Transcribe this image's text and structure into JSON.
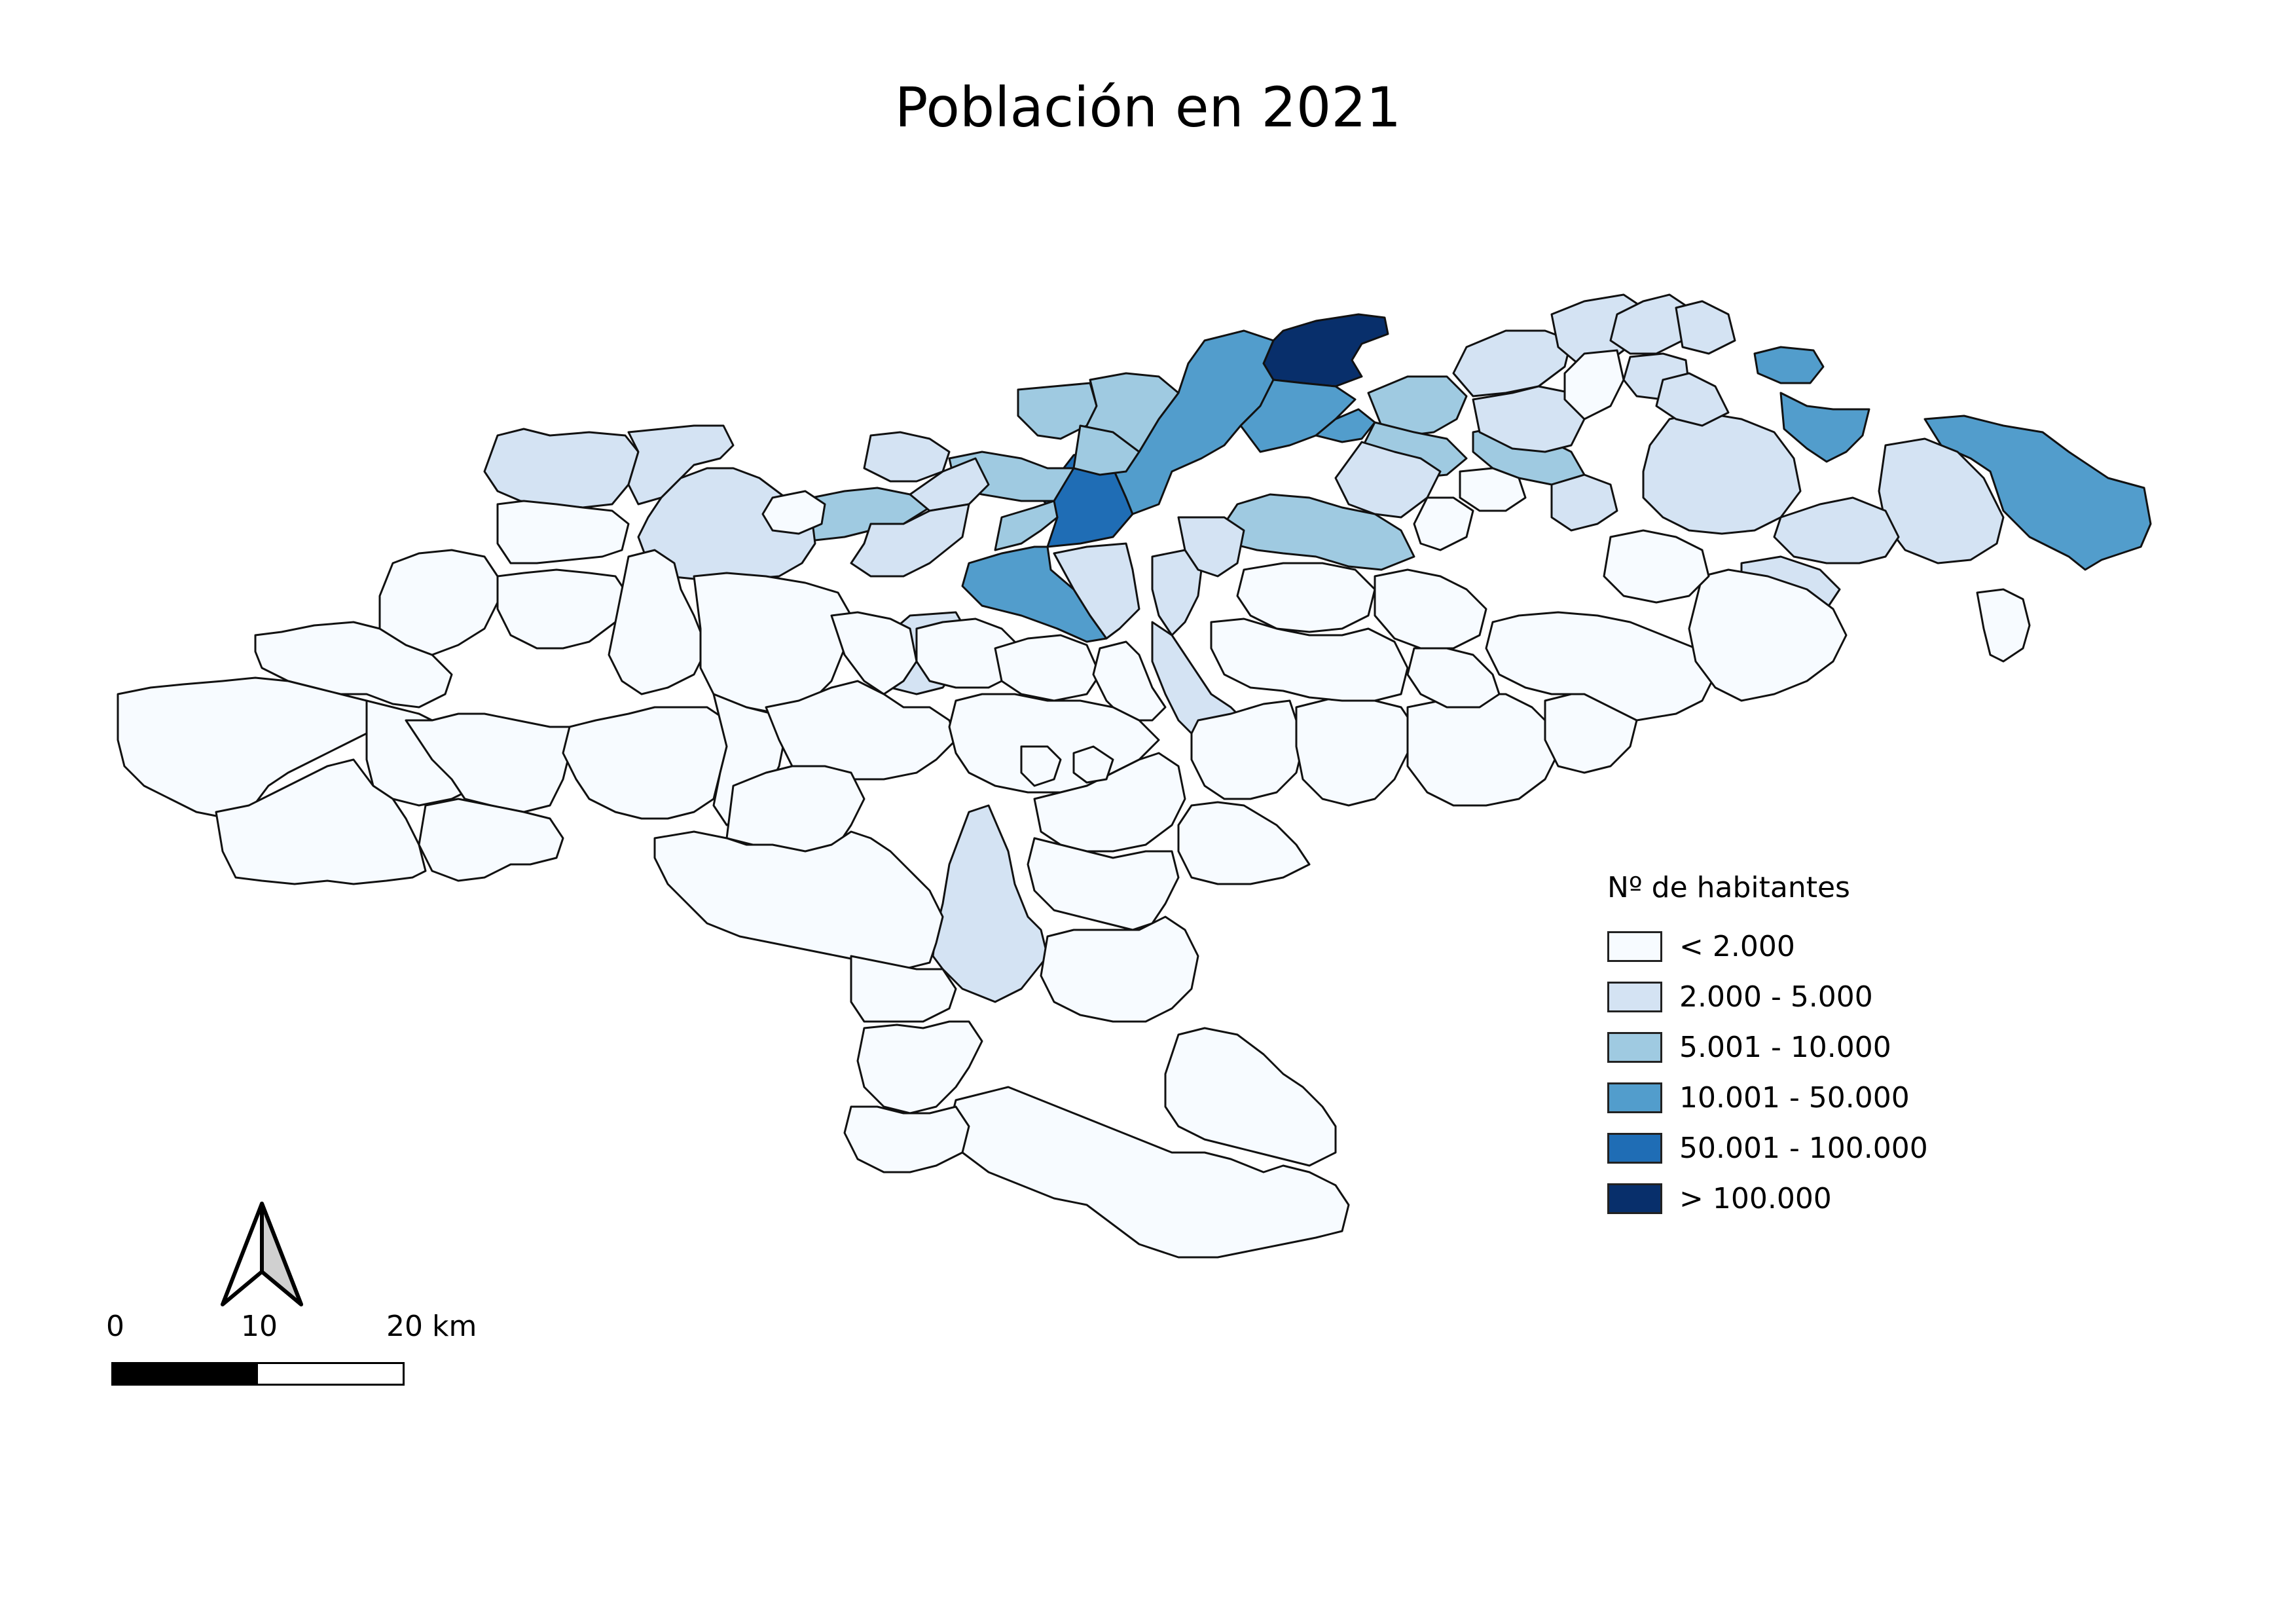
{
  "map": {
    "title": "Población en 2021",
    "legend": {
      "title": "Nº de habitantes",
      "items": [
        {
          "label": "< 2.000",
          "color": "#f7fbff"
        },
        {
          "label": "2.000 - 5.000",
          "color": "#d4e3f3"
        },
        {
          "label": "5.001 - 10.000",
          "color": "#9fcae1"
        },
        {
          "label": "10.001 - 50.000",
          "color": "#529dcc"
        },
        {
          "label": "50.001 - 100.000",
          "color": "#1f6db5"
        },
        {
          "label": "> 100.000",
          "color": "#082f6b"
        }
      ]
    },
    "scale_bar": {
      "labels": [
        "0",
        "10",
        "20 km"
      ]
    },
    "north_arrow": "north-arrow-icon"
  }
}
